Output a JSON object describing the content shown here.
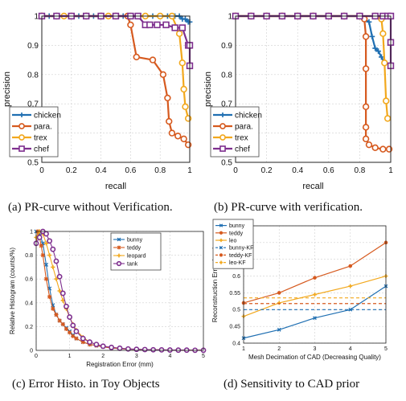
{
  "captions": {
    "a": "(a)  PR-curve without Verification.",
    "b": "(b)  PR-curve with verification.",
    "c": "(c)  Error Histo. in Toy Objects",
    "d": "(d)  Sensitivity to CAD prior"
  },
  "chart_data": [
    {
      "id": "a",
      "type": "line",
      "title": "",
      "xlabel": "recall",
      "ylabel": "precision",
      "xlim": [
        0,
        1
      ],
      "ylim": [
        0.5,
        1
      ],
      "xticks": [
        0,
        0.2,
        0.4,
        0.6,
        0.8,
        1
      ],
      "xtick_labels": [
        "0",
        "0.2",
        "0.4",
        "0.6",
        "0.8",
        "1"
      ],
      "yticks": [
        0.5,
        0.6,
        0.7,
        0.8,
        0.9,
        1
      ],
      "ytick_labels": [
        "0.5",
        "0.6",
        "0.7",
        "0.8",
        "0.9",
        "1"
      ],
      "grid": true,
      "legend": "bottom-left",
      "series": [
        {
          "name": "chicken",
          "color": "#1f6fb2",
          "marker": "plus",
          "x": [
            0,
            0.05,
            0.1,
            0.15,
            0.2,
            0.25,
            0.3,
            0.35,
            0.4,
            0.45,
            0.5,
            0.55,
            0.6,
            0.65,
            0.7,
            0.75,
            0.8,
            0.85,
            0.9,
            0.93,
            0.95,
            0.97,
            0.99,
            1.0
          ],
          "y": [
            1,
            1,
            1,
            1,
            1,
            1,
            1,
            1,
            1,
            1,
            1,
            1,
            1,
            1,
            1,
            1,
            1,
            1,
            1,
            1,
            0.99,
            0.99,
            0.98,
            0.98
          ]
        },
        {
          "name": "para.",
          "color": "#d65a1f",
          "marker": "circle",
          "x": [
            0,
            0.1,
            0.2,
            0.3,
            0.4,
            0.5,
            0.58,
            0.6,
            0.64,
            0.75,
            0.82,
            0.85,
            0.86,
            0.88,
            0.92,
            0.96,
            0.99
          ],
          "y": [
            1,
            1,
            1,
            1,
            1,
            1,
            1,
            0.97,
            0.86,
            0.85,
            0.8,
            0.72,
            0.64,
            0.6,
            0.59,
            0.58,
            0.56
          ]
        },
        {
          "name": "trex",
          "color": "#f2a81d",
          "marker": "circle",
          "x": [
            0,
            0.15,
            0.3,
            0.45,
            0.6,
            0.7,
            0.8,
            0.88,
            0.93,
            0.95,
            0.96,
            0.97,
            0.99
          ],
          "y": [
            1,
            1,
            1,
            1,
            1,
            1,
            1,
            1,
            0.94,
            0.84,
            0.75,
            0.69,
            0.65
          ]
        },
        {
          "name": "chef",
          "color": "#7e2f8e",
          "marker": "square",
          "x": [
            0,
            0.1,
            0.2,
            0.3,
            0.4,
            0.5,
            0.6,
            0.65,
            0.7,
            0.73,
            0.78,
            0.84,
            0.9,
            0.95,
            0.99,
            1.0,
            1.0
          ],
          "y": [
            1,
            1,
            1,
            1,
            1,
            1,
            1,
            1,
            0.97,
            0.97,
            0.97,
            0.97,
            0.96,
            0.96,
            0.9,
            0.9,
            0.83
          ]
        }
      ]
    },
    {
      "id": "b",
      "type": "line",
      "title": "",
      "xlabel": "recall",
      "ylabel": "precision",
      "xlim": [
        0,
        1
      ],
      "ylim": [
        0.5,
        1
      ],
      "xticks": [
        0,
        0.2,
        0.4,
        0.6,
        0.8,
        1
      ],
      "xtick_labels": [
        "0",
        "0.2",
        "0.4",
        "0.6",
        "0.8",
        "1"
      ],
      "yticks": [
        0.5,
        0.6,
        0.7,
        0.8,
        0.9,
        1
      ],
      "ytick_labels": [
        "0.5",
        "0.6",
        "0.7",
        "0.8",
        "0.9",
        "1"
      ],
      "grid": true,
      "legend": "bottom-left",
      "series": [
        {
          "name": "chicken",
          "color": "#1f6fb2",
          "marker": "plus",
          "x": [
            0,
            0.1,
            0.2,
            0.3,
            0.4,
            0.5,
            0.6,
            0.7,
            0.8,
            0.86,
            0.88,
            0.9,
            0.92,
            0.94,
            0.96
          ],
          "y": [
            1,
            1,
            1,
            1,
            1,
            1,
            1,
            1,
            1,
            0.98,
            0.93,
            0.89,
            0.88,
            0.86,
            0.84
          ]
        },
        {
          "name": "para.",
          "color": "#d65a1f",
          "marker": "circle",
          "x": [
            0,
            0.1,
            0.2,
            0.3,
            0.4,
            0.5,
            0.6,
            0.7,
            0.8,
            0.83,
            0.84,
            0.84,
            0.84,
            0.84,
            0.84,
            0.86,
            0.9,
            0.95,
            0.99
          ],
          "y": [
            1,
            1,
            1,
            1,
            1,
            1,
            1,
            1,
            1,
            0.99,
            0.93,
            0.82,
            0.69,
            0.62,
            0.58,
            0.56,
            0.55,
            0.545,
            0.545
          ]
        },
        {
          "name": "trex",
          "color": "#f2a81d",
          "marker": "circle",
          "x": [
            0,
            0.1,
            0.2,
            0.3,
            0.4,
            0.5,
            0.6,
            0.7,
            0.8,
            0.9,
            0.94,
            0.95,
            0.96,
            0.97,
            0.98
          ],
          "y": [
            1,
            1,
            1,
            1,
            1,
            1,
            1,
            1,
            1,
            1,
            0.99,
            0.94,
            0.84,
            0.71,
            0.65
          ]
        },
        {
          "name": "chef",
          "color": "#7e2f8e",
          "marker": "square",
          "x": [
            0,
            0.1,
            0.2,
            0.3,
            0.4,
            0.5,
            0.6,
            0.7,
            0.8,
            0.9,
            0.95,
            0.98,
            1.0,
            1.0,
            1.0
          ],
          "y": [
            1,
            1,
            1,
            1,
            1,
            1,
            1,
            1,
            1,
            1,
            1,
            1,
            1,
            0.91,
            0.83
          ]
        }
      ]
    },
    {
      "id": "c",
      "type": "line",
      "title": "",
      "xlabel": "Registration Error (mm)",
      "ylabel": "Relative Histogram (counts/%)",
      "xlim": [
        0,
        5
      ],
      "ylim": [
        0,
        1
      ],
      "xticks": [
        0,
        1,
        2,
        3,
        4,
        5
      ],
      "xtick_labels": [
        "0",
        "1",
        "2",
        "3",
        "4",
        "5"
      ],
      "yticks": [
        0,
        0.2,
        0.4,
        0.6,
        0.8,
        1
      ],
      "ytick_labels": [
        "0",
        "0.2",
        "0.4",
        "0.6",
        "0.8",
        "1"
      ],
      "grid": true,
      "legend": "top-right",
      "series": [
        {
          "name": "bunny",
          "color": "#1f6fb2",
          "marker": "x",
          "x": [
            0,
            0.1,
            0.2,
            0.3,
            0.4,
            0.5,
            0.6,
            0.7,
            0.8,
            0.9,
            1.0,
            1.1,
            1.2,
            1.4,
            1.6,
            1.8,
            2.0,
            2.25,
            2.5,
            2.75,
            3.0,
            3.25,
            3.5,
            3.75,
            4.0,
            4.25,
            4.5,
            4.75,
            5.0
          ],
          "y": [
            1,
            0.98,
            0.9,
            0.72,
            0.52,
            0.38,
            0.3,
            0.25,
            0.22,
            0.19,
            0.16,
            0.13,
            0.1,
            0.07,
            0.05,
            0.04,
            0.03,
            0.02,
            0.015,
            0.01,
            0.008,
            0.006,
            0.005,
            0.004,
            0.003,
            0.002,
            0.002,
            0.001,
            0.001
          ]
        },
        {
          "name": "teddy",
          "color": "#d65a1f",
          "marker": "star",
          "x": [
            0,
            0.05,
            0.1,
            0.15,
            0.2,
            0.3,
            0.4,
            0.5,
            0.6,
            0.7,
            0.8,
            0.9,
            1.0,
            1.1,
            1.2,
            1.4,
            1.6,
            1.8,
            2.0,
            2.25,
            2.5,
            2.75,
            3.0,
            3.25,
            3.5,
            3.75,
            4.0,
            4.25,
            4.5,
            4.75,
            5.0
          ],
          "y": [
            0.9,
            1,
            0.95,
            0.88,
            0.8,
            0.6,
            0.45,
            0.35,
            0.3,
            0.25,
            0.22,
            0.18,
            0.15,
            0.12,
            0.1,
            0.07,
            0.05,
            0.04,
            0.03,
            0.02,
            0.015,
            0.01,
            0.008,
            0.006,
            0.005,
            0.004,
            0.003,
            0.002,
            0.002,
            0.001,
            0.001
          ]
        },
        {
          "name": "leopard",
          "color": "#f2a81d",
          "marker": "plus",
          "x": [
            0,
            0.1,
            0.2,
            0.3,
            0.4,
            0.5,
            0.6,
            0.7,
            0.8,
            0.9,
            1.0,
            1.1,
            1.2,
            1.4,
            1.6,
            1.8,
            2.0,
            2.25,
            2.5,
            2.75,
            3.0,
            3.25,
            3.5,
            3.75,
            4.0,
            4.25,
            4.5,
            4.75,
            5.0
          ],
          "y": [
            0.95,
            1,
            0.98,
            0.9,
            0.8,
            0.7,
            0.6,
            0.5,
            0.42,
            0.35,
            0.28,
            0.22,
            0.17,
            0.11,
            0.07,
            0.05,
            0.035,
            0.025,
            0.018,
            0.012,
            0.009,
            0.007,
            0.005,
            0.004,
            0.003,
            0.002,
            0.002,
            0.001,
            0.001
          ]
        },
        {
          "name": "tank",
          "color": "#7e2f8e",
          "marker": "circle",
          "x": [
            0,
            0.1,
            0.2,
            0.3,
            0.4,
            0.5,
            0.6,
            0.7,
            0.8,
            0.9,
            1.0,
            1.1,
            1.2,
            1.4,
            1.6,
            1.8,
            2.0,
            2.25,
            2.5,
            2.75,
            3.0,
            3.25,
            3.5,
            3.75,
            4.0,
            4.25,
            4.5,
            4.75,
            5.0
          ],
          "y": [
            0.9,
            0.95,
            1,
            0.98,
            0.92,
            0.85,
            0.75,
            0.62,
            0.48,
            0.37,
            0.28,
            0.21,
            0.16,
            0.1,
            0.07,
            0.05,
            0.035,
            0.025,
            0.018,
            0.012,
            0.009,
            0.007,
            0.005,
            0.004,
            0.003,
            0.002,
            0.002,
            0.001,
            0.001
          ]
        }
      ]
    },
    {
      "id": "d",
      "type": "line",
      "title": "",
      "xlabel": "Mesh Decimation of CAD (Decreasing Quality)",
      "ylabel": "Reconstruction Error (mm)",
      "xlim": [
        1,
        5
      ],
      "ylim": [
        0.4,
        0.75
      ],
      "xticks": [
        1,
        2,
        3,
        4,
        5
      ],
      "xtick_labels": [
        "1",
        "2",
        "3",
        "4",
        "5"
      ],
      "yticks": [
        0.4,
        0.45,
        0.5,
        0.55,
        0.6,
        0.65,
        0.7,
        0.75
      ],
      "ytick_labels": [
        "0.4",
        "0.45",
        "0.5",
        "0.55",
        "0.6",
        "0.65",
        "0.7",
        "0.75"
      ],
      "grid": true,
      "legend": "top-left",
      "series": [
        {
          "name": "bunny",
          "color": "#1f6fb2",
          "marker": "x",
          "dash": false,
          "x": [
            1,
            2,
            3,
            4,
            5
          ],
          "y": [
            0.415,
            0.44,
            0.475,
            0.5,
            0.57
          ]
        },
        {
          "name": "teddy",
          "color": "#d65a1f",
          "marker": "dot",
          "dash": false,
          "x": [
            1,
            2,
            3,
            4,
            5
          ],
          "y": [
            0.52,
            0.55,
            0.595,
            0.63,
            0.7
          ]
        },
        {
          "name": "leo",
          "color": "#f2a81d",
          "marker": "plus",
          "dash": false,
          "x": [
            1,
            2,
            3,
            4,
            5
          ],
          "y": [
            0.48,
            0.52,
            0.545,
            0.57,
            0.6
          ]
        },
        {
          "name": "bunny-KF",
          "color": "#1f6fb2",
          "marker": "x",
          "dash": true,
          "x": [
            1,
            5
          ],
          "y": [
            0.5,
            0.5
          ]
        },
        {
          "name": "teddy-KF",
          "color": "#d65a1f",
          "marker": "dot",
          "dash": true,
          "x": [
            1,
            5
          ],
          "y": [
            0.518,
            0.518
          ]
        },
        {
          "name": "leo-KF",
          "color": "#f2a81d",
          "marker": "plus",
          "dash": true,
          "x": [
            1,
            5
          ],
          "y": [
            0.535,
            0.535
          ]
        }
      ]
    }
  ]
}
